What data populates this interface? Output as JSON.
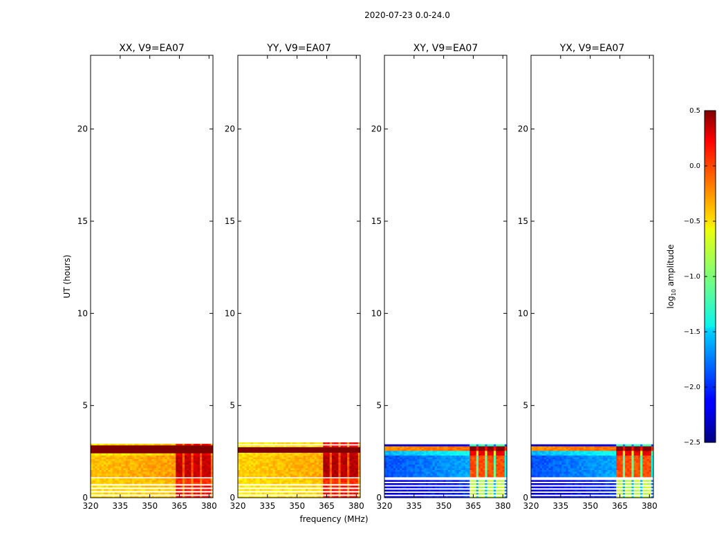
{
  "figure": {
    "suptitle": "2020-07-23 0.0-24.0",
    "xlabel": "frequency (MHz)",
    "ylabel": "UT (hours)"
  },
  "colorbar": {
    "label_base": "log",
    "label_sub": "10",
    "label_rest": " amplitude",
    "range": [
      -2.5,
      0.5
    ],
    "tick_labels": [
      "0.5",
      "0.0",
      "−0.5",
      "−1.0",
      "−1.5",
      "−2.0",
      "−2.5"
    ],
    "tick_values": [
      0.5,
      0.0,
      -0.5,
      -1.0,
      -1.5,
      -2.0,
      -2.5
    ],
    "colormap": "jet"
  },
  "chart_data": [
    {
      "type": "heatmap",
      "title": "XX, V9=EA07",
      "xlim": [
        320,
        382
      ],
      "ylim": [
        0,
        24
      ],
      "xticks": [
        320,
        335,
        350,
        365,
        380
      ],
      "yticks": [
        0,
        5,
        10,
        15,
        20
      ],
      "segments": [
        {
          "t": [
            0.0,
            0.75
          ],
          "mode": "stripes",
          "base": -0.55,
          "peak": 0.1
        },
        {
          "t": [
            0.75,
            1.05
          ],
          "mode": "solid",
          "base": -0.5,
          "peak": 0.0
        },
        {
          "t": [
            1.05,
            1.12
          ],
          "mode": "gap"
        },
        {
          "t": [
            1.12,
            2.3
          ],
          "mode": "solid",
          "base": -0.45,
          "peak": 0.3
        },
        {
          "t": [
            2.3,
            2.42
          ],
          "mode": "solid",
          "base": -0.6,
          "peak": 0.2
        },
        {
          "t": [
            2.42,
            2.85
          ],
          "mode": "flat",
          "value": 0.5
        },
        {
          "t": [
            2.85,
            3.0
          ],
          "mode": "stripes",
          "base": -0.55,
          "peak": 0.1
        }
      ]
    },
    {
      "type": "heatmap",
      "title": "YY, V9=EA07",
      "xlim": [
        320,
        382
      ],
      "ylim": [
        0,
        24
      ],
      "xticks": [
        320,
        335,
        350,
        365,
        380
      ],
      "yticks": [
        0,
        5,
        10,
        15,
        20
      ],
      "segments": [
        {
          "t": [
            0.0,
            0.75
          ],
          "mode": "stripes",
          "base": -0.6,
          "peak": 0.1
        },
        {
          "t": [
            0.75,
            1.05
          ],
          "mode": "solid",
          "base": -0.55,
          "peak": 0.0
        },
        {
          "t": [
            1.05,
            1.12
          ],
          "mode": "gap"
        },
        {
          "t": [
            1.12,
            2.3
          ],
          "mode": "solid",
          "base": -0.5,
          "peak": 0.35
        },
        {
          "t": [
            2.3,
            2.45
          ],
          "mode": "solid",
          "base": -0.55,
          "peak": 0.3
        },
        {
          "t": [
            2.45,
            2.75
          ],
          "mode": "flat",
          "value": 0.5
        },
        {
          "t": [
            2.75,
            3.0
          ],
          "mode": "stripes",
          "base": -0.6,
          "peak": 0.1
        }
      ]
    },
    {
      "type": "heatmap",
      "title": "XY, V9=EA07",
      "xlim": [
        320,
        382
      ],
      "ylim": [
        0,
        24
      ],
      "xticks": [
        320,
        335,
        350,
        365,
        380
      ],
      "yticks": [
        0,
        5,
        10,
        15,
        20
      ],
      "segments": [
        {
          "t": [
            0.0,
            1.05
          ],
          "mode": "stripes",
          "base": -2.2,
          "peak": -0.8
        },
        {
          "t": [
            1.05,
            1.12
          ],
          "mode": "gap"
        },
        {
          "t": [
            1.12,
            2.3
          ],
          "mode": "solid",
          "base": -1.9,
          "peak": -0.1
        },
        {
          "t": [
            2.3,
            2.55
          ],
          "mode": "solid",
          "base": -1.6,
          "peak": 0.2
        },
        {
          "t": [
            2.55,
            2.8
          ],
          "mode": "solid",
          "base": -0.3,
          "peak": 0.5
        },
        {
          "t": [
            2.8,
            3.0
          ],
          "mode": "stripes",
          "base": -2.3,
          "peak": -1.2
        }
      ]
    },
    {
      "type": "heatmap",
      "title": "YX, V9=EA07",
      "xlim": [
        320,
        382
      ],
      "ylim": [
        0,
        24
      ],
      "xticks": [
        320,
        335,
        350,
        365,
        380
      ],
      "yticks": [
        0,
        5,
        10,
        15,
        20
      ],
      "segments": [
        {
          "t": [
            0.0,
            1.05
          ],
          "mode": "stripes",
          "base": -2.2,
          "peak": -0.8
        },
        {
          "t": [
            1.05,
            1.12
          ],
          "mode": "gap"
        },
        {
          "t": [
            1.12,
            2.3
          ],
          "mode": "solid",
          "base": -1.9,
          "peak": -0.1
        },
        {
          "t": [
            2.3,
            2.55
          ],
          "mode": "solid",
          "base": -1.6,
          "peak": 0.2
        },
        {
          "t": [
            2.55,
            2.8
          ],
          "mode": "solid",
          "base": -0.3,
          "peak": 0.5
        },
        {
          "t": [
            2.8,
            3.0
          ],
          "mode": "stripes",
          "base": -2.3,
          "peak": -1.2
        }
      ]
    }
  ]
}
